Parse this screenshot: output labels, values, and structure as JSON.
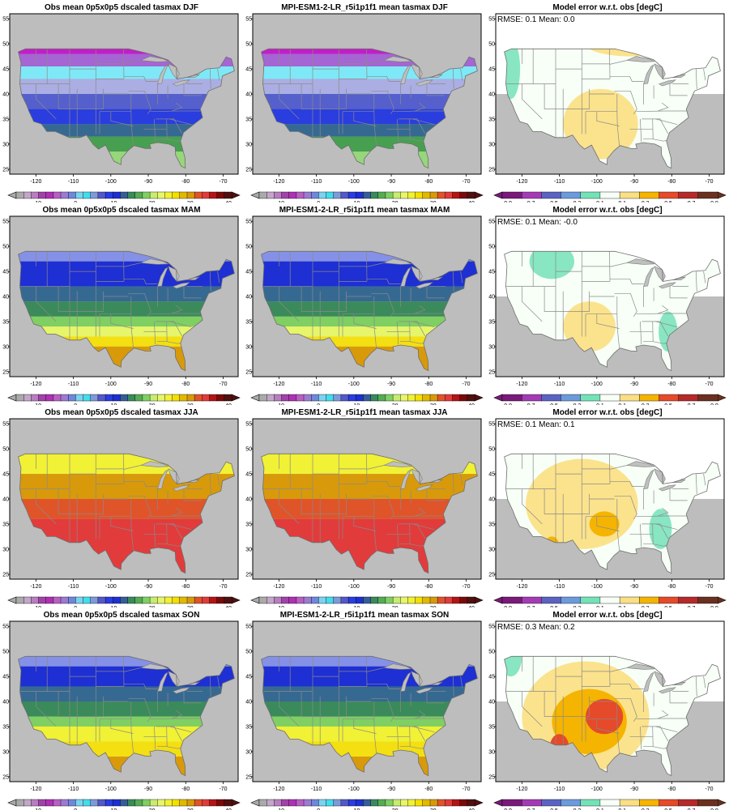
{
  "figure": {
    "rows": [
      {
        "season": "DJF",
        "panels": [
          {
            "title": "Obs mean 0p5x0p5 dscaled tasmax DJF",
            "kind": "field",
            "stats": ""
          },
          {
            "title": "MPI-ESM1-2-LR_r5i1p1f1 mean tasmax DJF",
            "kind": "field",
            "stats": ""
          },
          {
            "title": "Model error w.r.t. obs [degC]",
            "kind": "error",
            "stats": "RMSE: 0.1   Mean: 0.0"
          }
        ]
      },
      {
        "season": "MAM",
        "panels": [
          {
            "title": "Obs mean 0p5x0p5 dscaled tasmax MAM",
            "kind": "field",
            "stats": ""
          },
          {
            "title": "MPI-ESM1-2-LR_r5i1p1f1 mean tasmax MAM",
            "kind": "field",
            "stats": ""
          },
          {
            "title": "Model error w.r.t. obs [degC]",
            "kind": "error",
            "stats": "RMSE: 0.1   Mean: -0.0"
          }
        ]
      },
      {
        "season": "JJA",
        "panels": [
          {
            "title": "Obs mean 0p5x0p5 dscaled tasmax JJA",
            "kind": "field",
            "stats": ""
          },
          {
            "title": "MPI-ESM1-2-LR_r5i1p1f1 mean tasmax JJA",
            "kind": "field",
            "stats": ""
          },
          {
            "title": "Model error w.r.t. obs [degC]",
            "kind": "error",
            "stats": "RMSE: 0.1   Mean: 0.1"
          }
        ]
      },
      {
        "season": "SON",
        "panels": [
          {
            "title": "Obs mean 0p5x0p5 dscaled tasmax SON",
            "kind": "field",
            "stats": ""
          },
          {
            "title": "MPI-ESM1-2-LR_r5i1p1f1 mean tasmax SON",
            "kind": "field",
            "stats": ""
          },
          {
            "title": "Model error w.r.t. obs [degC]",
            "kind": "error",
            "stats": "RMSE: 0.3   Mean: 0.2"
          }
        ]
      }
    ]
  },
  "chart_data": {
    "type": "heatmap",
    "x_ticks": [
      -120,
      -110,
      -100,
      -90,
      -80,
      -70
    ],
    "y_ticks": [
      25,
      30,
      35,
      40,
      45,
      50,
      55
    ],
    "xlim": [
      -127,
      -66
    ],
    "ylim": [
      24,
      56
    ],
    "field_colorbar": {
      "labels": [
        -10,
        0,
        10,
        20,
        30,
        40
      ],
      "colors": [
        "#aaaaaa",
        "#c3a7c9",
        "#b87ec0",
        "#a341ab",
        "#b030b5",
        "#b85fc4",
        "#9e7ad2",
        "#6f87dc",
        "#7bd3ee",
        "#43dcee",
        "#7f9ad9",
        "#5458c8",
        "#2a3ddf",
        "#1e2fd3",
        "#365d9a",
        "#3b8a5b",
        "#54ac54",
        "#7fcf63",
        "#c7ec70",
        "#e6f56a",
        "#f1f135",
        "#f4e000",
        "#e2b900",
        "#d89a0a",
        "#e0542a",
        "#e23b3b",
        "#b51414",
        "#7a0a0a",
        "#501010"
      ]
    },
    "error_colorbar": {
      "labels": [
        -0.9,
        -0.7,
        -0.5,
        -0.3,
        -0.1,
        0.1,
        0.3,
        0.5,
        0.7,
        0.9
      ],
      "colors": [
        "#7a1a7a",
        "#a43bb4",
        "#5a63c2",
        "#6b9bdc",
        "#73e2b8",
        "#f7fff7",
        "#f9df85",
        "#f5b400",
        "#e54a2a",
        "#b52a2a",
        "#6a3020"
      ]
    },
    "seasons": {
      "DJF": {
        "zones": [
          [
            48,
            "#c21ec8"
          ],
          [
            45.5,
            "#a565d3"
          ],
          [
            43,
            "#7fe8f6"
          ],
          [
            40,
            "#abaee2"
          ],
          [
            37,
            "#5560cd"
          ],
          [
            34,
            "#2a3ddf"
          ],
          [
            31.5,
            "#366992"
          ],
          [
            28.5,
            "#46a050"
          ],
          [
            24,
            "#97d67a"
          ]
        ],
        "error_spots": [
          {
            "lon": -99,
            "lat": 34,
            "rx": 10,
            "ry": 7,
            "color": "#fbe28c"
          },
          {
            "lon": -91,
            "lat": 50,
            "rx": 12,
            "ry": 2.5,
            "color": "#fbe28c"
          },
          {
            "lon": -123,
            "lat": 45,
            "rx": 2.5,
            "ry": 6,
            "color": "#88e6c3"
          }
        ]
      },
      "MAM": {
        "zones": [
          [
            47,
            "#8591e6"
          ],
          [
            42,
            "#1e2fd3"
          ],
          [
            39,
            "#366992"
          ],
          [
            36,
            "#3b8a5b"
          ],
          [
            34,
            "#7fcf63"
          ],
          [
            32,
            "#e6f56a"
          ],
          [
            30,
            "#f3df12"
          ],
          [
            24,
            "#d89a0a"
          ]
        ],
        "error_spots": [
          {
            "lon": -102,
            "lat": 34,
            "rx": 7,
            "ry": 5,
            "color": "#fbe28c"
          },
          {
            "lon": -112,
            "lat": 47,
            "rx": 6,
            "ry": 3.5,
            "color": "#88e6c3"
          },
          {
            "lon": -81,
            "lat": 33,
            "rx": 2.5,
            "ry": 4,
            "color": "#88e6c3"
          }
        ]
      },
      "JJA": {
        "zones": [
          [
            49,
            "#7fcf63"
          ],
          [
            45,
            "#f1f135"
          ],
          [
            40,
            "#d89a0a"
          ],
          [
            36,
            "#e0542a"
          ],
          [
            24,
            "#e23b3b"
          ]
        ],
        "error_spots": [
          {
            "lon": -104,
            "lat": 39,
            "rx": 15,
            "ry": 9,
            "color": "#fbe28c"
          },
          {
            "lon": -98,
            "lat": 35,
            "rx": 4,
            "ry": 2.5,
            "color": "#f5b400"
          },
          {
            "lon": -112,
            "lat": 31,
            "rx": 1.8,
            "ry": 1.5,
            "color": "#f5b400"
          },
          {
            "lon": -83,
            "lat": 34,
            "rx": 3,
            "ry": 4,
            "color": "#88e6c3"
          }
        ]
      },
      "SON": {
        "zones": [
          [
            47,
            "#8591e6"
          ],
          [
            43,
            "#1e2fd3"
          ],
          [
            40,
            "#366992"
          ],
          [
            37,
            "#3b8a5b"
          ],
          [
            35,
            "#7fcf63"
          ],
          [
            32,
            "#f1f135"
          ],
          [
            29,
            "#f3df12"
          ],
          [
            24,
            "#d89a0a"
          ]
        ],
        "error_spots": [
          {
            "lon": -103,
            "lat": 37,
            "rx": 17,
            "ry": 11,
            "color": "#fbe28c"
          },
          {
            "lon": -102,
            "lat": 36,
            "rx": 10,
            "ry": 6.5,
            "color": "#f5b400"
          },
          {
            "lon": -98,
            "lat": 37,
            "rx": 5,
            "ry": 3.5,
            "color": "#e54a2a"
          },
          {
            "lon": -110,
            "lat": 31,
            "rx": 2.5,
            "ry": 2.5,
            "color": "#e54a2a"
          },
          {
            "lon": -123,
            "lat": 49,
            "rx": 3,
            "ry": 4,
            "color": "#88e6c3"
          }
        ]
      }
    }
  }
}
